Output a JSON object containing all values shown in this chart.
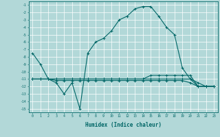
{
  "xlabel": "Humidex (Indice chaleur)",
  "ylabel": "",
  "background_color": "#b2d8d8",
  "grid_color": "#ffffff",
  "line_color": "#006666",
  "xlim": [
    -0.5,
    23.5
  ],
  "ylim": [
    -15.5,
    -0.5
  ],
  "xticks": [
    0,
    1,
    2,
    3,
    4,
    5,
    6,
    7,
    8,
    9,
    10,
    11,
    12,
    13,
    14,
    15,
    16,
    17,
    18,
    19,
    20,
    21,
    22,
    23
  ],
  "yticks": [
    -1,
    -2,
    -3,
    -4,
    -5,
    -6,
    -7,
    -8,
    -9,
    -10,
    -11,
    -12,
    -13,
    -14,
    -15
  ],
  "series": [
    {
      "x": [
        0,
        1,
        2,
        3,
        4,
        5,
        6,
        7,
        8,
        9,
        10,
        11,
        12,
        13,
        14,
        15,
        16,
        17,
        18,
        19,
        20,
        21,
        22,
        23
      ],
      "y": [
        -7.5,
        -9.0,
        -11.0,
        -11.5,
        -13.0,
        -11.5,
        -15.0,
        -7.5,
        -6.0,
        -5.5,
        -4.5,
        -3.0,
        -2.5,
        -1.5,
        -1.2,
        -1.2,
        -2.5,
        -4.0,
        -5.0,
        -9.5,
        -11.0,
        -12.0,
        -12.0,
        -12.0
      ]
    },
    {
      "x": [
        0,
        1,
        2,
        3,
        4,
        5,
        6,
        7,
        8,
        9,
        10,
        11,
        12,
        13,
        14,
        15,
        16,
        17,
        18,
        19,
        20,
        21,
        22,
        23
      ],
      "y": [
        -11.0,
        -11.0,
        -11.0,
        -11.0,
        -11.0,
        -11.0,
        -11.0,
        -11.0,
        -11.0,
        -11.0,
        -11.0,
        -11.0,
        -11.0,
        -11.0,
        -11.0,
        -11.0,
        -11.0,
        -11.0,
        -11.0,
        -11.0,
        -11.0,
        -11.5,
        -12.0,
        -12.0
      ]
    },
    {
      "x": [
        0,
        1,
        2,
        3,
        4,
        5,
        6,
        7,
        8,
        9,
        10,
        11,
        12,
        13,
        14,
        15,
        16,
        17,
        18,
        19,
        20,
        21,
        22,
        23
      ],
      "y": [
        -11.0,
        -11.0,
        -11.0,
        -11.0,
        -11.0,
        -11.0,
        -11.0,
        -11.0,
        -11.0,
        -11.0,
        -11.0,
        -11.0,
        -11.0,
        -11.0,
        -11.0,
        -10.5,
        -10.5,
        -10.5,
        -10.5,
        -10.5,
        -10.5,
        -12.0,
        -12.0,
        -12.0
      ]
    },
    {
      "x": [
        0,
        1,
        2,
        3,
        4,
        5,
        6,
        7,
        8,
        9,
        10,
        11,
        12,
        13,
        14,
        15,
        16,
        17,
        18,
        19,
        20,
        21,
        22,
        23
      ],
      "y": [
        -11.0,
        -11.0,
        -11.0,
        -11.2,
        -11.2,
        -11.2,
        -11.2,
        -11.2,
        -11.2,
        -11.2,
        -11.2,
        -11.2,
        -11.2,
        -11.2,
        -11.2,
        -11.2,
        -11.2,
        -11.2,
        -11.2,
        -11.2,
        -11.5,
        -12.0,
        -12.0,
        -12.0
      ]
    }
  ]
}
